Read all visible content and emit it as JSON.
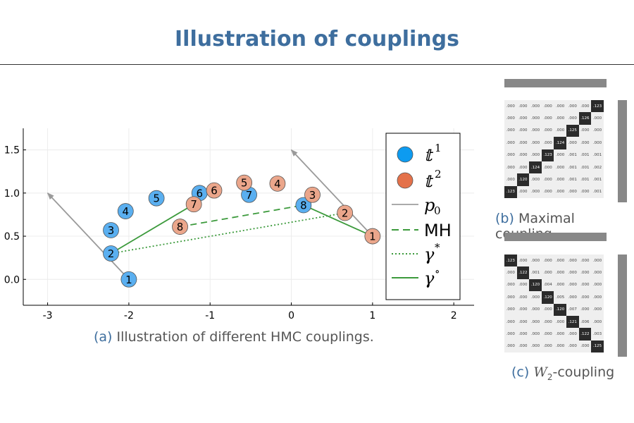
{
  "title": "Illustration of couplings",
  "chart_data": {
    "type": "scatter",
    "xlim": [
      -3.3,
      2.25
    ],
    "ylim": [
      -0.3,
      1.75
    ],
    "x_ticks": [
      -3,
      -2,
      -1,
      0,
      1,
      2
    ],
    "y_ticks": [
      0.0,
      0.5,
      1.0,
      1.5
    ],
    "y_tick_labels": [
      "0.0",
      "0.5",
      "1.0",
      "1.5"
    ],
    "chain1_color": "#5aaff0",
    "chain2_color": "#eba68b",
    "chain1": [
      {
        "label": "1",
        "x": -2.0,
        "y": 0.0
      },
      {
        "label": "2",
        "x": -2.22,
        "y": 0.3
      },
      {
        "label": "3",
        "x": -2.22,
        "y": 0.57
      },
      {
        "label": "4",
        "x": -2.04,
        "y": 0.79
      },
      {
        "label": "5",
        "x": -1.66,
        "y": 0.94
      },
      {
        "label": "6",
        "x": -1.13,
        "y": 1.0
      },
      {
        "label": "7",
        "x": -0.52,
        "y": 0.98
      },
      {
        "label": "8",
        "x": 0.15,
        "y": 0.86
      }
    ],
    "chain2": [
      {
        "label": "1",
        "x": 1.0,
        "y": 0.5
      },
      {
        "label": "2",
        "x": 0.66,
        "y": 0.77
      },
      {
        "label": "3",
        "x": 0.26,
        "y": 0.98
      },
      {
        "label": "4",
        "x": -0.17,
        "y": 1.11
      },
      {
        "label": "5",
        "x": -0.58,
        "y": 1.12
      },
      {
        "label": "6",
        "x": -0.95,
        "y": 1.03
      },
      {
        "label": "7",
        "x": -1.2,
        "y": 0.87
      },
      {
        "label": "8",
        "x": -1.37,
        "y": 0.61
      }
    ],
    "p0_arrows": [
      {
        "from": [
          -2.0,
          0.0
        ],
        "to": [
          -3.0,
          1.0
        ]
      },
      {
        "from": [
          1.0,
          0.5
        ],
        "to": [
          0.0,
          1.5
        ]
      }
    ],
    "mh_line": {
      "from": [
        -1.37,
        0.61
      ],
      "to": [
        0.15,
        0.86
      ]
    },
    "gamma_star_line": {
      "from": [
        -2.22,
        0.3
      ],
      "to": [
        0.66,
        0.77
      ]
    },
    "gamma_circ_lines": [
      {
        "from": [
          -2.22,
          0.3
        ],
        "to": [
          -1.2,
          0.87
        ]
      },
      {
        "from": [
          0.15,
          0.86
        ],
        "to": [
          1.0,
          0.5
        ]
      }
    ],
    "legend": {
      "placement": "right",
      "entries": [
        {
          "kind": "marker",
          "color": "#0d9bf0",
          "symbol": "𝕥",
          "sup": "1"
        },
        {
          "kind": "marker",
          "color": "#e4714a",
          "symbol": "𝕥",
          "sup": "2"
        },
        {
          "kind": "line",
          "style": "solid-gray",
          "symbol": "p",
          "sub": "0"
        },
        {
          "kind": "line",
          "style": "dashed-green",
          "text": "MH"
        },
        {
          "kind": "line",
          "style": "dotted-green",
          "symbol": "γ",
          "sup": "*"
        },
        {
          "kind": "line",
          "style": "solid-green",
          "symbol": "γ",
          "sup": "∘"
        }
      ]
    }
  },
  "captions": {
    "a_label": "(a)",
    "a_text": "Illustration of different HMC couplings.",
    "b_label": "(b)",
    "b_text": "Maximal coupling",
    "c_label": "(c)",
    "c_text_w": "W",
    "c_text_sub": "2",
    "c_text_rest": "-coupling"
  },
  "maximal_coupling_matrix": [
    [
      ".000",
      ".000",
      ".000",
      ".000",
      ".000",
      ".000",
      ".000",
      ".123"
    ],
    [
      ".000",
      ".000",
      ".000",
      ".000",
      ".000",
      ".000",
      ".126",
      ".000"
    ],
    [
      ".000",
      ".000",
      ".000",
      ".000",
      ".000",
      ".125",
      ".000",
      ".000"
    ],
    [
      ".000",
      ".000",
      ".000",
      ".000",
      ".124",
      ".000",
      ".000",
      ".000"
    ],
    [
      ".000",
      ".000",
      ".000",
      ".123",
      ".000",
      ".001",
      ".001",
      ".001"
    ],
    [
      ".000",
      ".000",
      ".124",
      ".000",
      ".000",
      ".001",
      ".001",
      ".002"
    ],
    [
      ".000",
      ".120",
      ".000",
      ".000",
      ".000",
      ".001",
      ".001",
      ".001"
    ],
    [
      ".123",
      ".000",
      ".000",
      ".000",
      ".000",
      ".000",
      ".000",
      ".001"
    ]
  ],
  "w2_coupling_matrix": [
    [
      ".123",
      ".000",
      ".000",
      ".000",
      ".000",
      ".000",
      ".000",
      ".000"
    ],
    [
      ".000",
      ".122",
      ".001",
      ".000",
      ".000",
      ".000",
      ".000",
      ".000"
    ],
    [
      ".000",
      ".000",
      ".120",
      ".004",
      ".000",
      ".000",
      ".000",
      ".000"
    ],
    [
      ".000",
      ".000",
      ".000",
      ".120",
      ".005",
      ".000",
      ".000",
      ".000"
    ],
    [
      ".000",
      ".000",
      ".000",
      ".000",
      ".120",
      ".007",
      ".000",
      ".000"
    ],
    [
      ".000",
      ".000",
      ".000",
      ".000",
      ".000",
      ".121",
      ".006",
      ".000"
    ],
    [
      ".000",
      ".000",
      ".000",
      ".000",
      ".000",
      ".000",
      ".122",
      ".003"
    ],
    [
      ".000",
      ".000",
      ".000",
      ".000",
      ".000",
      ".000",
      ".000",
      ".125"
    ]
  ]
}
